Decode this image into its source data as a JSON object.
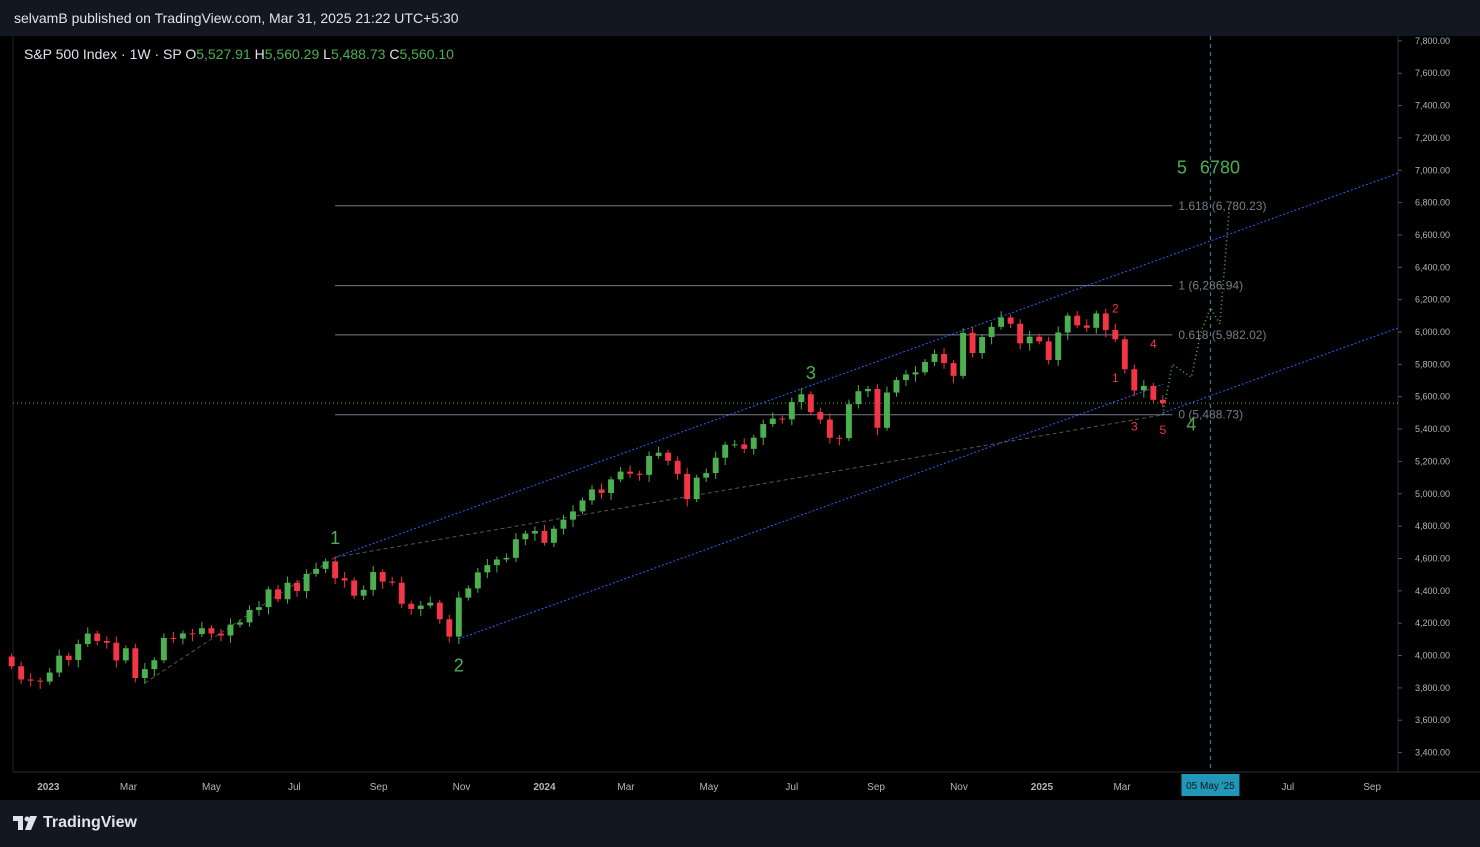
{
  "header": {
    "publish_text": "selvamB published on TradingView.com, Mar 31, 2025 21:22 UTC+5:30"
  },
  "legend": {
    "symbol": "S&P 500 Index · 1W · SP",
    "open_label": "O",
    "open": "5,527.91",
    "high_label": "H",
    "high": "5,560.29",
    "low_label": "L",
    "low": "5,488.73",
    "close_label": "C",
    "close": "5,560.10"
  },
  "footer": {
    "brand": "TradingView"
  },
  "colors": {
    "up": "#4caf50",
    "down": "#f23645",
    "channel": "#2962ff",
    "fib": "#787b86",
    "wave_green": "#4caf50",
    "wave_red": "#f23645",
    "date_badge": "#2196b6"
  },
  "chart_data": {
    "type": "candlestick",
    "y_axis": {
      "ticks": [
        "3,400.00",
        "3,600.00",
        "3,800.00",
        "4,000.00",
        "4,200.00",
        "4,400.00",
        "4,600.00",
        "4,800.00",
        "5,000.00",
        "5,200.00",
        "5,400.00",
        "5,600.00",
        "5,800.00",
        "6,000.00",
        "6,200.00",
        "6,400.00",
        "6,600.00",
        "6,800.00",
        "7,000.00",
        "7,200.00",
        "7,400.00",
        "7,600.00",
        "7,800.00"
      ],
      "ylim": [
        3280,
        7830
      ]
    },
    "x_axis": {
      "ticks": [
        {
          "label": "2023",
          "date": "2023-01-01"
        },
        {
          "label": "Mar",
          "date": "2023-03-01"
        },
        {
          "label": "May",
          "date": "2023-05-01"
        },
        {
          "label": "Jul",
          "date": "2023-07-01"
        },
        {
          "label": "Sep",
          "date": "2023-09-01"
        },
        {
          "label": "Nov",
          "date": "2023-11-01"
        },
        {
          "label": "2024",
          "date": "2024-01-01"
        },
        {
          "label": "Mar",
          "date": "2024-03-01"
        },
        {
          "label": "May",
          "date": "2024-05-01"
        },
        {
          "label": "Jul",
          "date": "2024-07-01"
        },
        {
          "label": "Sep",
          "date": "2024-09-01"
        },
        {
          "label": "Nov",
          "date": "2024-11-01"
        },
        {
          "label": "2025",
          "date": "2025-01-01"
        },
        {
          "label": "Mar",
          "date": "2025-03-01"
        },
        {
          "label": "Jul",
          "date": "2025-07-01"
        },
        {
          "label": "Sep",
          "date": "2025-09-01"
        }
      ],
      "xlim": [
        "2022-12-06",
        "2025-09-20"
      ],
      "highlight_label": "05 May '25",
      "highlight_date": "2025-05-05"
    },
    "weekly_closes": [
      {
        "date": "2022-12-05",
        "close": 3934
      },
      {
        "date": "2022-12-12",
        "close": 3852
      },
      {
        "date": "2022-12-19",
        "close": 3845
      },
      {
        "date": "2022-12-26",
        "close": 3839
      },
      {
        "date": "2023-01-02",
        "close": 3895
      },
      {
        "date": "2023-01-09",
        "close": 3999
      },
      {
        "date": "2023-01-16",
        "close": 3972
      },
      {
        "date": "2023-01-23",
        "close": 4071
      },
      {
        "date": "2023-01-30",
        "close": 4136
      },
      {
        "date": "2023-02-06",
        "close": 4090
      },
      {
        "date": "2023-02-13",
        "close": 4079
      },
      {
        "date": "2023-02-20",
        "close": 3970
      },
      {
        "date": "2023-02-27",
        "close": 4045
      },
      {
        "date": "2023-03-06",
        "close": 3861
      },
      {
        "date": "2023-03-13",
        "close": 3916
      },
      {
        "date": "2023-03-20",
        "close": 3971
      },
      {
        "date": "2023-03-27",
        "close": 4109
      },
      {
        "date": "2023-04-03",
        "close": 4105
      },
      {
        "date": "2023-04-10",
        "close": 4137
      },
      {
        "date": "2023-04-17",
        "close": 4133
      },
      {
        "date": "2023-04-24",
        "close": 4169
      },
      {
        "date": "2023-05-01",
        "close": 4136
      },
      {
        "date": "2023-05-08",
        "close": 4124
      },
      {
        "date": "2023-05-15",
        "close": 4191
      },
      {
        "date": "2023-05-22",
        "close": 4205
      },
      {
        "date": "2023-05-29",
        "close": 4282
      },
      {
        "date": "2023-06-05",
        "close": 4299
      },
      {
        "date": "2023-06-12",
        "close": 4409
      },
      {
        "date": "2023-06-19",
        "close": 4348
      },
      {
        "date": "2023-06-26",
        "close": 4450
      },
      {
        "date": "2023-07-03",
        "close": 4399
      },
      {
        "date": "2023-07-10",
        "close": 4505
      },
      {
        "date": "2023-07-17",
        "close": 4536
      },
      {
        "date": "2023-07-24",
        "close": 4582
      },
      {
        "date": "2023-07-31",
        "close": 4478
      },
      {
        "date": "2023-08-07",
        "close": 4464
      },
      {
        "date": "2023-08-14",
        "close": 4370
      },
      {
        "date": "2023-08-21",
        "close": 4406
      },
      {
        "date": "2023-08-28",
        "close": 4516
      },
      {
        "date": "2023-09-04",
        "close": 4457
      },
      {
        "date": "2023-09-11",
        "close": 4450
      },
      {
        "date": "2023-09-18",
        "close": 4320
      },
      {
        "date": "2023-09-25",
        "close": 4288
      },
      {
        "date": "2023-10-02",
        "close": 4309
      },
      {
        "date": "2023-10-09",
        "close": 4327
      },
      {
        "date": "2023-10-16",
        "close": 4224
      },
      {
        "date": "2023-10-23",
        "close": 4117
      },
      {
        "date": "2023-10-30",
        "close": 4358
      },
      {
        "date": "2023-11-06",
        "close": 4415
      },
      {
        "date": "2023-11-13",
        "close": 4514
      },
      {
        "date": "2023-11-20",
        "close": 4559
      },
      {
        "date": "2023-11-27",
        "close": 4594
      },
      {
        "date": "2023-12-04",
        "close": 4604
      },
      {
        "date": "2023-12-11",
        "close": 4719
      },
      {
        "date": "2023-12-18",
        "close": 4754
      },
      {
        "date": "2023-12-25",
        "close": 4770
      },
      {
        "date": "2024-01-01",
        "close": 4697
      },
      {
        "date": "2024-01-08",
        "close": 4784
      },
      {
        "date": "2024-01-15",
        "close": 4840
      },
      {
        "date": "2024-01-22",
        "close": 4891
      },
      {
        "date": "2024-01-29",
        "close": 4959
      },
      {
        "date": "2024-02-05",
        "close": 5027
      },
      {
        "date": "2024-02-12",
        "close": 5005
      },
      {
        "date": "2024-02-19",
        "close": 5089
      },
      {
        "date": "2024-02-26",
        "close": 5137
      },
      {
        "date": "2024-03-04",
        "close": 5124
      },
      {
        "date": "2024-03-11",
        "close": 5117
      },
      {
        "date": "2024-03-18",
        "close": 5234
      },
      {
        "date": "2024-03-25",
        "close": 5254
      },
      {
        "date": "2024-04-01",
        "close": 5204
      },
      {
        "date": "2024-04-08",
        "close": 5123
      },
      {
        "date": "2024-04-15",
        "close": 4967
      },
      {
        "date": "2024-04-22",
        "close": 5100
      },
      {
        "date": "2024-04-29",
        "close": 5128
      },
      {
        "date": "2024-05-06",
        "close": 5223
      },
      {
        "date": "2024-05-13",
        "close": 5303
      },
      {
        "date": "2024-05-20",
        "close": 5305
      },
      {
        "date": "2024-05-27",
        "close": 5278
      },
      {
        "date": "2024-06-03",
        "close": 5347
      },
      {
        "date": "2024-06-10",
        "close": 5431
      },
      {
        "date": "2024-06-17",
        "close": 5465
      },
      {
        "date": "2024-06-24",
        "close": 5460
      },
      {
        "date": "2024-07-01",
        "close": 5567
      },
      {
        "date": "2024-07-08",
        "close": 5615
      },
      {
        "date": "2024-07-15",
        "close": 5505
      },
      {
        "date": "2024-07-22",
        "close": 5459
      },
      {
        "date": "2024-07-29",
        "close": 5346
      },
      {
        "date": "2024-08-05",
        "close": 5344
      },
      {
        "date": "2024-08-12",
        "close": 5554
      },
      {
        "date": "2024-08-19",
        "close": 5634
      },
      {
        "date": "2024-08-26",
        "close": 5648
      },
      {
        "date": "2024-09-02",
        "close": 5408
      },
      {
        "date": "2024-09-09",
        "close": 5626
      },
      {
        "date": "2024-09-16",
        "close": 5703
      },
      {
        "date": "2024-09-23",
        "close": 5738
      },
      {
        "date": "2024-09-30",
        "close": 5751
      },
      {
        "date": "2024-10-07",
        "close": 5815
      },
      {
        "date": "2024-10-14",
        "close": 5864
      },
      {
        "date": "2024-10-21",
        "close": 5808
      },
      {
        "date": "2024-10-28",
        "close": 5729
      },
      {
        "date": "2024-11-04",
        "close": 5995
      },
      {
        "date": "2024-11-11",
        "close": 5870
      },
      {
        "date": "2024-11-18",
        "close": 5969
      },
      {
        "date": "2024-11-25",
        "close": 6032
      },
      {
        "date": "2024-12-02",
        "close": 6090
      },
      {
        "date": "2024-12-09",
        "close": 6051
      },
      {
        "date": "2024-12-16",
        "close": 5930
      },
      {
        "date": "2024-12-23",
        "close": 5971
      },
      {
        "date": "2024-12-30",
        "close": 5942
      },
      {
        "date": "2025-01-06",
        "close": 5827
      },
      {
        "date": "2025-01-13",
        "close": 5997
      },
      {
        "date": "2025-01-20",
        "close": 6101
      },
      {
        "date": "2025-01-27",
        "close": 6041
      },
      {
        "date": "2025-02-03",
        "close": 6026
      },
      {
        "date": "2025-02-10",
        "close": 6115
      },
      {
        "date": "2025-02-17",
        "close": 6013
      },
      {
        "date": "2025-02-24",
        "close": 5955
      },
      {
        "date": "2025-03-03",
        "close": 5770
      },
      {
        "date": "2025-03-10",
        "close": 5639
      },
      {
        "date": "2025-03-17",
        "close": 5667
      },
      {
        "date": "2025-03-24",
        "close": 5581
      },
      {
        "date": "2025-03-31",
        "close": 5560
      }
    ],
    "fib_levels": [
      {
        "label": "1.618 (6,780.23)",
        "value": 6780.23
      },
      {
        "label": "1 (6,286.94)",
        "value": 6286.94
      },
      {
        "label": "0.618 (5,982.02)",
        "value": 5982.02
      },
      {
        "label": "0 (5,488.73)",
        "value": 5488.73
      }
    ],
    "wave_labels_green": [
      {
        "text": "1",
        "date": "2023-07-31",
        "price": 4690
      },
      {
        "text": "2",
        "date": "2023-10-30",
        "price": 3900
      },
      {
        "text": "3",
        "date": "2024-07-15",
        "price": 5710
      },
      {
        "text": "4",
        "date": "2025-04-21",
        "price": 5390
      },
      {
        "text": "5",
        "date": "2025-04-14",
        "price": 6980
      },
      {
        "text": "6780",
        "date": "2025-05-12",
        "price": 6980
      }
    ],
    "wave_labels_red": [
      {
        "text": "2",
        "date": "2025-02-24",
        "price": 6120
      },
      {
        "text": "4",
        "date": "2025-03-24",
        "price": 5900
      },
      {
        "text": "1",
        "date": "2025-02-24",
        "price": 5690
      },
      {
        "text": "3",
        "date": "2025-03-10",
        "price": 5390
      },
      {
        "text": "5",
        "date": "2025-03-31",
        "price": 5370
      }
    ],
    "projection_path": [
      {
        "date": "2025-03-31",
        "price": 5490
      },
      {
        "date": "2025-04-07",
        "price": 5800
      },
      {
        "date": "2025-04-21",
        "price": 5720
      },
      {
        "date": "2025-04-28",
        "price": 6000
      },
      {
        "date": "2025-05-05",
        "price": 6150
      },
      {
        "date": "2025-05-12",
        "price": 6050
      },
      {
        "date": "2025-05-19",
        "price": 6780
      }
    ],
    "current_price": 5560.1
  }
}
